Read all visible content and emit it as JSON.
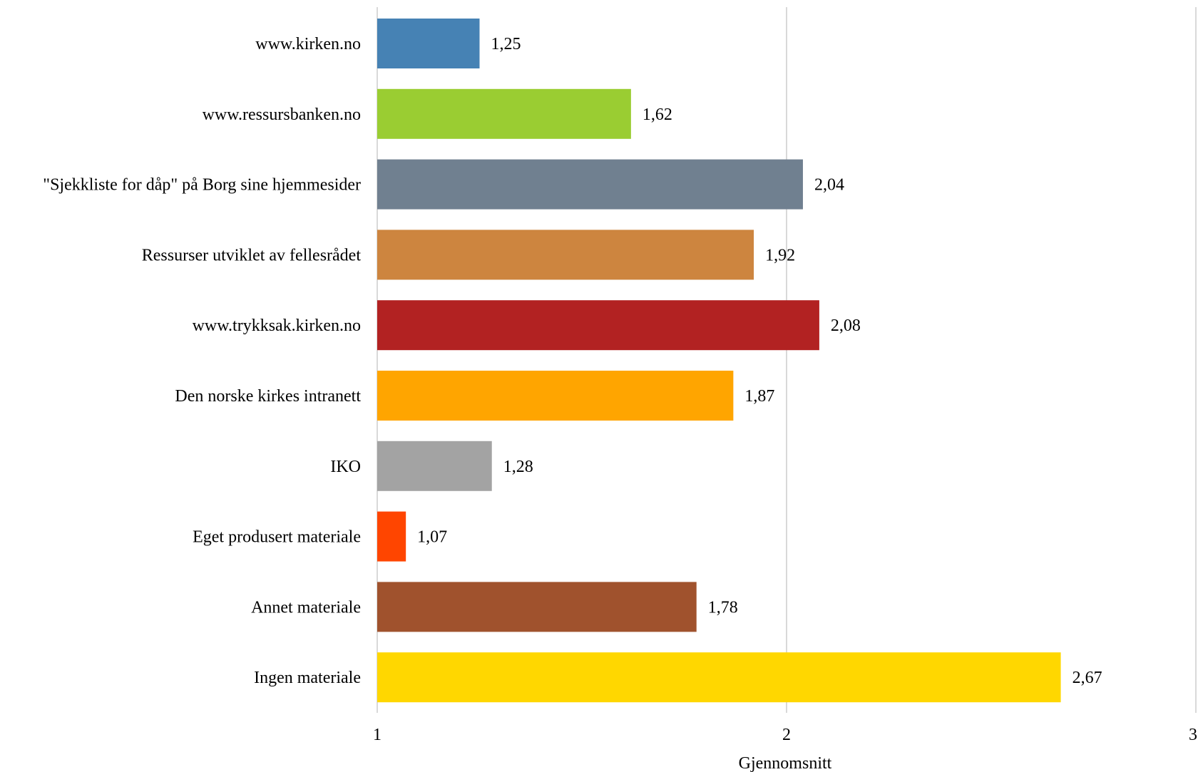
{
  "chart_data": {
    "type": "bar",
    "orientation": "horizontal",
    "categories": [
      "www.kirken.no",
      "www.ressursbanken.no",
      "\"Sjekkliste for dåp\" på Borg sine hjemmesider",
      "Ressurser utviklet av fellesrådet",
      "www.trykksak.kirken.no",
      "Den norske kirkes intranett",
      "IKO",
      "Eget produsert materiale",
      "Annet materiale",
      "Ingen materiale"
    ],
    "values": [
      1.25,
      1.62,
      2.04,
      1.92,
      2.08,
      1.87,
      1.28,
      1.07,
      1.78,
      2.67
    ],
    "value_labels": [
      "1,25",
      "1,62",
      "2,04",
      "1,92",
      "2,08",
      "1,87",
      "1,28",
      "1,07",
      "1,78",
      "2,67"
    ],
    "colors": [
      "#4682B4",
      "#9ACD32",
      "#708090",
      "#CD853F",
      "#B22222",
      "#FFA500",
      "#A3A3A3",
      "#FF4500",
      "#A0522D",
      "#FFD700"
    ],
    "xlabel": "Gjennomsnitt",
    "xlim": [
      1,
      3
    ],
    "xticks": [
      1,
      2,
      3
    ],
    "xtick_labels": [
      "1",
      "2",
      "3"
    ],
    "grid": true
  }
}
